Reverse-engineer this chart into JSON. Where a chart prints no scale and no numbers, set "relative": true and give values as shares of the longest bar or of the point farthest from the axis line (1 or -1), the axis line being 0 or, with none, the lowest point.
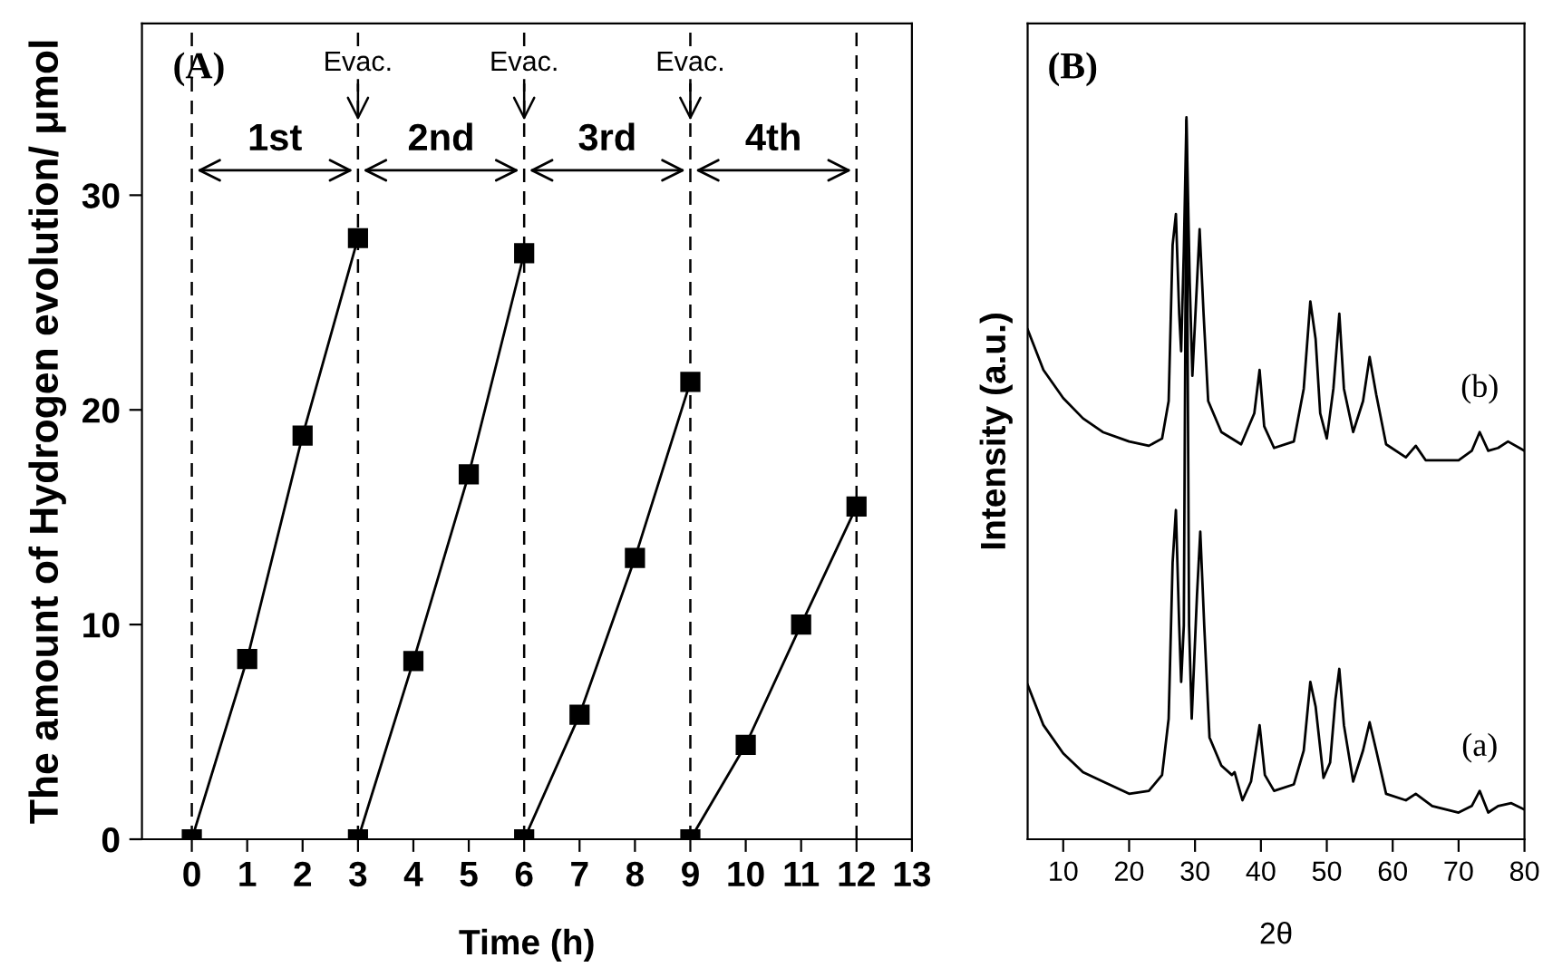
{
  "chart_data": [
    {
      "type": "line",
      "xlabel": "Time (h)",
      "ylabel": "The amount of Hydrogen evolution/ μmol",
      "xlim": [
        -0.9,
        13
      ],
      "ylim": [
        0,
        38
      ],
      "xticks": [
        0,
        1,
        2,
        3,
        4,
        5,
        6,
        7,
        8,
        9,
        10,
        11,
        12,
        13
      ],
      "yticks": [
        0,
        10,
        20,
        30
      ],
      "grid": false,
      "marker": "square",
      "line_style": "solid",
      "series": [
        {
          "color": "#000000",
          "x": [
            0,
            1,
            2,
            3
          ],
          "values": [
            0,
            8.4,
            18.8,
            28
          ]
        },
        {
          "color": "#000000",
          "x": [
            3,
            4,
            5,
            6
          ],
          "values": [
            0,
            8.3,
            17,
            27.3
          ]
        },
        {
          "color": "#000000",
          "x": [
            6,
            7,
            8,
            9
          ],
          "values": [
            0,
            5.8,
            13.1,
            21.3
          ]
        },
        {
          "color": "#000000",
          "x": [
            9,
            10,
            11,
            12
          ],
          "values": [
            0,
            4.4,
            10,
            15.5
          ]
        }
      ],
      "ref_lines": [
        {
          "axis": "x",
          "value": 0,
          "color": "#000000",
          "line_style": "dashed"
        },
        {
          "axis": "x",
          "value": 3,
          "color": "#000000",
          "line_style": "dashed",
          "label": "Evac."
        },
        {
          "axis": "x",
          "value": 6,
          "color": "#000000",
          "line_style": "dashed",
          "label": "Evac."
        },
        {
          "axis": "x",
          "value": 9,
          "color": "#000000",
          "line_style": "dashed",
          "label": "Evac."
        },
        {
          "axis": "x",
          "value": 12,
          "color": "#000000",
          "line_style": "dashed"
        }
      ],
      "annotations": [
        "(A)",
        "1st",
        "2nd",
        "3rd",
        "4th"
      ]
    },
    {
      "type": "line",
      "xlabel": "2θ",
      "ylabel": "Intensity (a.u.)",
      "relative": true,
      "tick_labels": "x",
      "xlim": [
        4.6,
        80
      ],
      "xticks": [
        10,
        20,
        30,
        40,
        50,
        60,
        70,
        80
      ],
      "grid": false,
      "marker": "none",
      "line_style": "solid",
      "series": [
        {
          "name": "(b)",
          "color": "#000000",
          "x": [
            4.6,
            7,
            10,
            13,
            16,
            20,
            23,
            25,
            26,
            26.6,
            27.1,
            27.6,
            27.9,
            28.3,
            28.7,
            29.2,
            29.6,
            30.3,
            30.7,
            31.3,
            32,
            34,
            37,
            39,
            39.8,
            40.5,
            42,
            45,
            46.5,
            47.5,
            48.3,
            49,
            50,
            51,
            51.9,
            52.6,
            54,
            55.5,
            56.5,
            57.5,
            59,
            62,
            63.5,
            65,
            70,
            72,
            73.2,
            74.5,
            76,
            77.5,
            80
          ],
          "values": [
            0.706,
            0.65,
            0.611,
            0.583,
            0.564,
            0.551,
            0.545,
            0.555,
            0.607,
            0.823,
            0.866,
            0.728,
            0.676,
            0.814,
            1.0,
            0.771,
            0.642,
            0.771,
            0.845,
            0.728,
            0.607,
            0.564,
            0.547,
            0.59,
            0.65,
            0.572,
            0.542,
            0.551,
            0.624,
            0.745,
            0.693,
            0.59,
            0.555,
            0.624,
            0.728,
            0.624,
            0.564,
            0.607,
            0.668,
            0.616,
            0.547,
            0.529,
            0.545,
            0.525,
            0.525,
            0.538,
            0.564,
            0.538,
            0.542,
            0.551,
            0.538
          ]
        },
        {
          "name": "(a)",
          "color": "#000000",
          "x": [
            4.6,
            7,
            10,
            13,
            16,
            20,
            23,
            25,
            26,
            26.6,
            27.1,
            27.6,
            27.9,
            28.3,
            28.7,
            29.1,
            29.5,
            30.3,
            30.8,
            31.4,
            32.2,
            34,
            35.6,
            36,
            37.2,
            38.5,
            39.8,
            40.6,
            42,
            45,
            46.5,
            47.5,
            48.3,
            49.5,
            50.5,
            51.3,
            51.9,
            52.6,
            54,
            55.5,
            56.5,
            57.5,
            59,
            62,
            63.5,
            66,
            70,
            72,
            73.2,
            74.5,
            76,
            78,
            80
          ],
          "values": [
            0.214,
            0.158,
            0.119,
            0.093,
            0.08,
            0.063,
            0.067,
            0.089,
            0.167,
            0.383,
            0.456,
            0.296,
            0.218,
            0.296,
            0.996,
            0.296,
            0.167,
            0.338,
            0.426,
            0.296,
            0.141,
            0.102,
            0.089,
            0.093,
            0.054,
            0.08,
            0.158,
            0.089,
            0.067,
            0.076,
            0.123,
            0.218,
            0.184,
            0.085,
            0.106,
            0.193,
            0.236,
            0.158,
            0.08,
            0.123,
            0.162,
            0.123,
            0.063,
            0.054,
            0.063,
            0.046,
            0.037,
            0.046,
            0.067,
            0.037,
            0.046,
            0.05,
            0.041
          ]
        }
      ],
      "annotations": [
        "(B)"
      ]
    }
  ]
}
